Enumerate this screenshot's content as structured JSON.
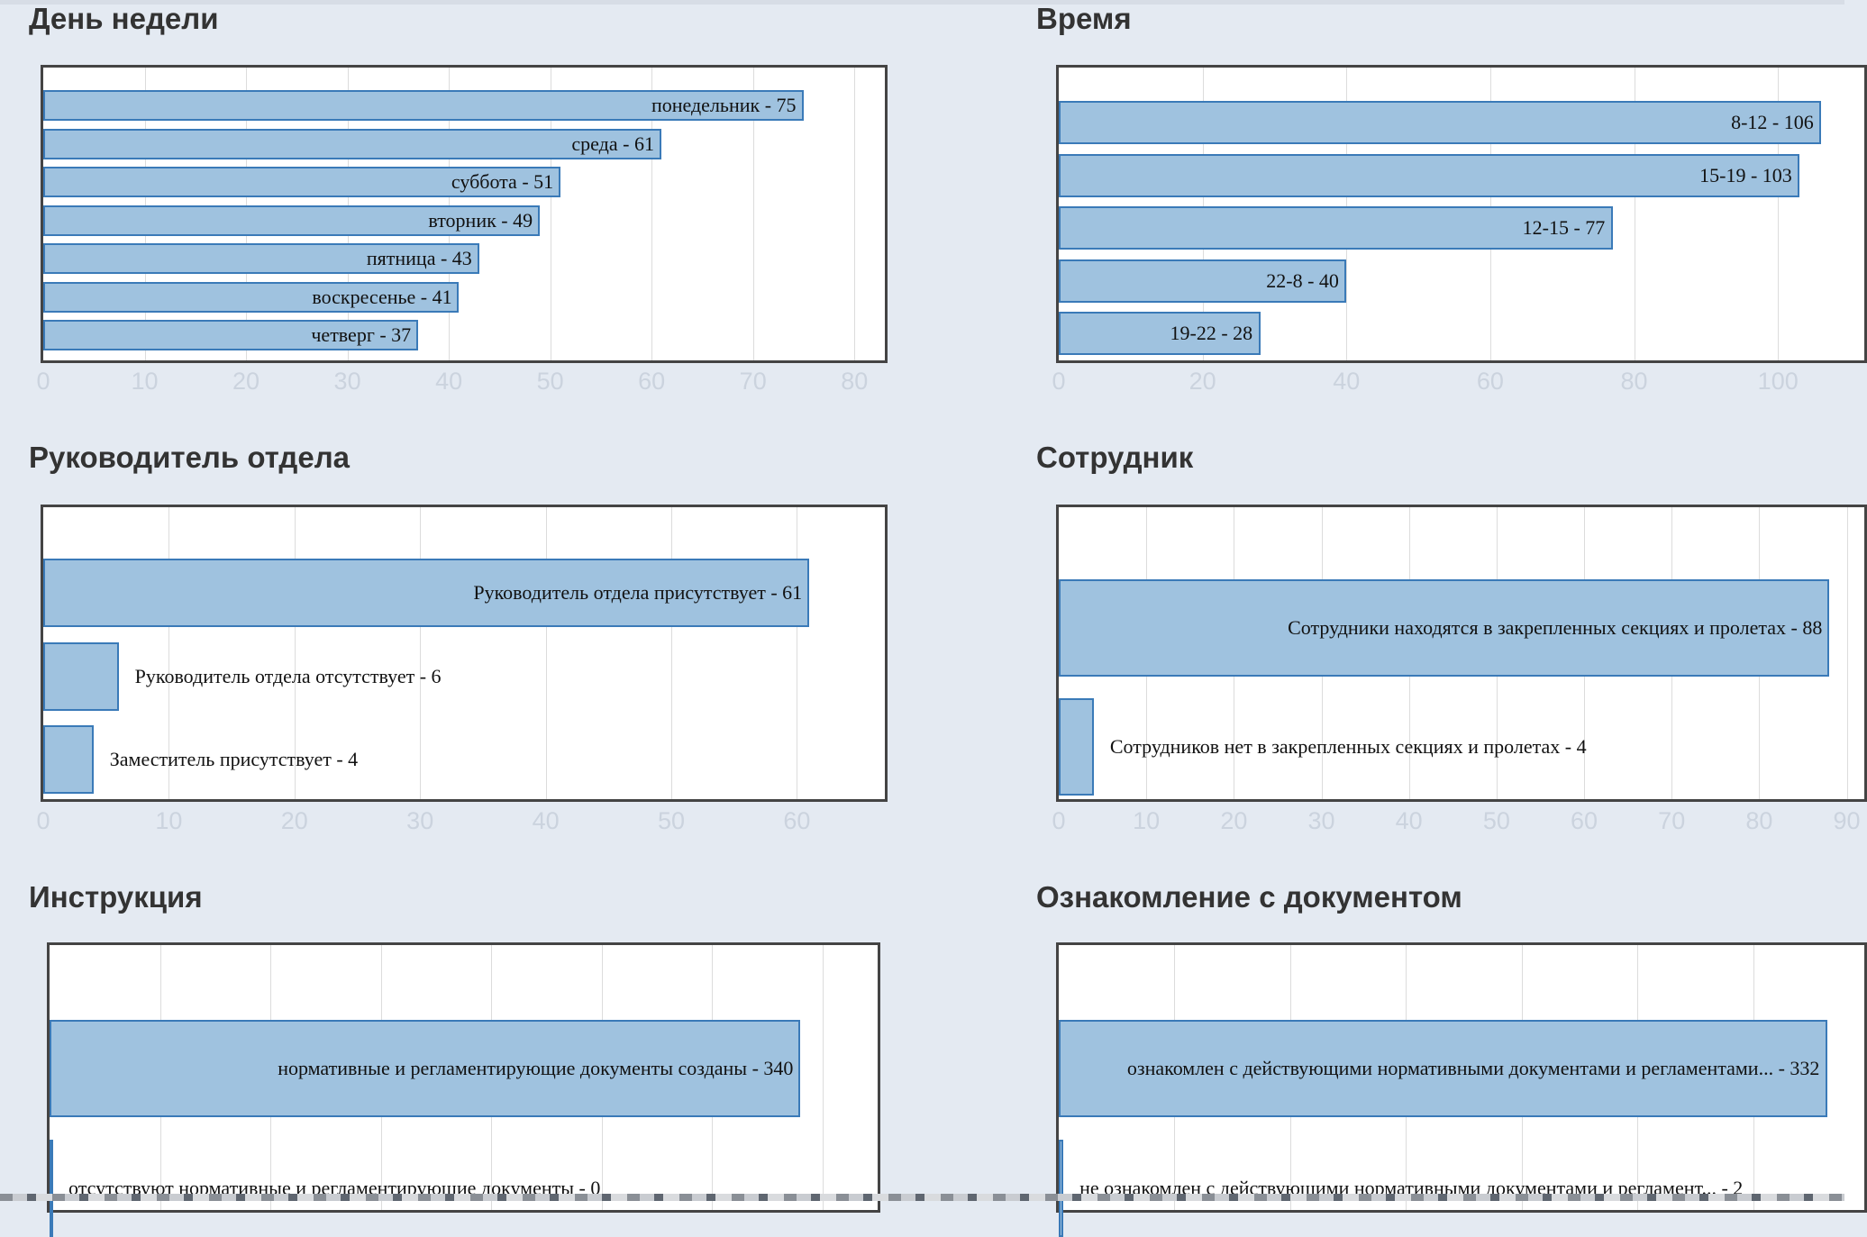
{
  "chart_data": [
    {
      "type": "bar",
      "orientation": "horizontal",
      "title": "День недели",
      "categories": [
        "понедельник",
        "среда",
        "суббота",
        "вторник",
        "пятница",
        "воскресенье",
        "четверг"
      ],
      "values": [
        75,
        61,
        51,
        49,
        43,
        41,
        37
      ],
      "xlim": [
        0,
        83
      ],
      "ticks": [
        0,
        10,
        20,
        30,
        40,
        50,
        60,
        70,
        80
      ],
      "grid": true
    },
    {
      "type": "bar",
      "orientation": "horizontal",
      "title": "Время",
      "categories": [
        "8-12",
        "15-19",
        "12-15",
        "22-8",
        "19-22"
      ],
      "values": [
        106,
        103,
        77,
        40,
        28
      ],
      "xlim": [
        0,
        112
      ],
      "ticks": [
        0,
        20,
        40,
        60,
        80,
        100
      ],
      "grid": true
    },
    {
      "type": "bar",
      "orientation": "horizontal",
      "title": "Руководитель отдела",
      "categories": [
        "Руководитель отдела присутствует",
        "Руководитель отдела отсутствует",
        "Заместитель присутствует"
      ],
      "values": [
        61,
        6,
        4
      ],
      "xlim": [
        0,
        67
      ],
      "ticks": [
        0,
        10,
        20,
        30,
        40,
        50,
        60
      ],
      "grid": true
    },
    {
      "type": "bar",
      "orientation": "horizontal",
      "title": "Сотрудник",
      "categories": [
        "Сотрудники находятся в закрепленных секциях и пролетах",
        "Сотрудников нет в закрепленных секциях и пролетах"
      ],
      "values": [
        88,
        4
      ],
      "xlim": [
        0,
        92
      ],
      "ticks": [
        0,
        10,
        20,
        30,
        40,
        50,
        60,
        70,
        80,
        90
      ],
      "grid": true
    },
    {
      "type": "bar",
      "orientation": "horizontal",
      "title": "Инструкция",
      "categories": [
        "нормативные и регламентирующие документы созданы",
        "отсутствуют нормативные и регламентирующие документы"
      ],
      "values": [
        340,
        0
      ],
      "xlim": [
        0,
        375
      ],
      "ticks": [],
      "grid": true
    },
    {
      "type": "bar",
      "orientation": "horizontal",
      "title": "Ознакомление с документом",
      "categories": [
        "ознакомлен с действующими нормативными документами и регламентами...",
        "не ознакомлен с действующими нормативными документами и регламент..."
      ],
      "values": [
        332,
        2
      ],
      "xlim": [
        0,
        348
      ],
      "ticks": [],
      "grid": true
    }
  ]
}
